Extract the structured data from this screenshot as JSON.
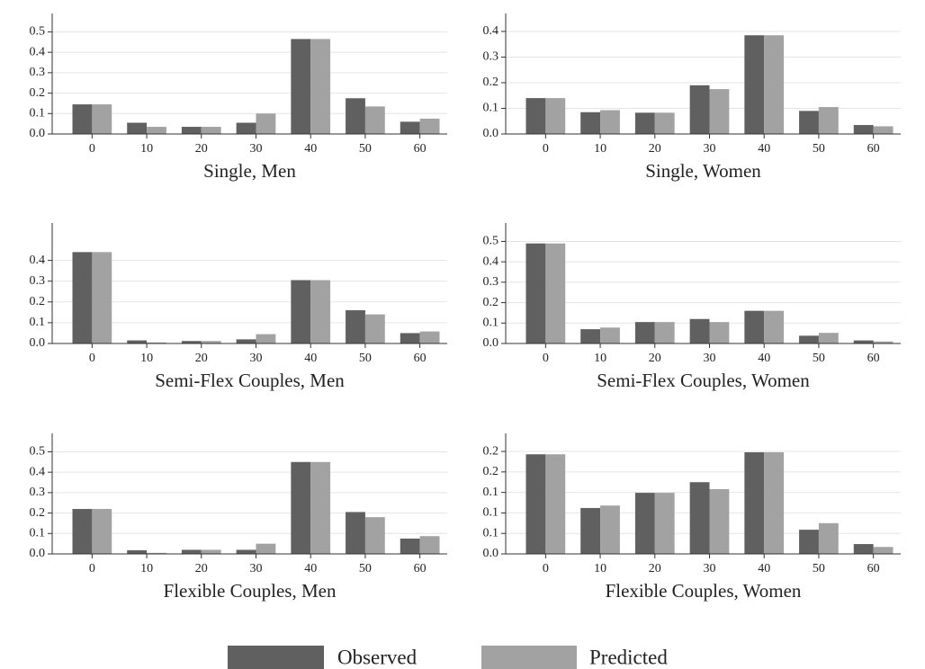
{
  "chart_data": [
    {
      "type": "bar",
      "xlabel": "Single, Men",
      "categories": [
        "0",
        "10",
        "20",
        "30",
        "40",
        "50",
        "60"
      ],
      "series": [
        {
          "name": "Observed",
          "color": "#606060",
          "values": [
            0.145,
            0.055,
            0.035,
            0.055,
            0.465,
            0.175,
            0.06
          ]
        },
        {
          "name": "Predicted",
          "color": "#a2a2a2",
          "values": [
            0.145,
            0.035,
            0.035,
            0.1,
            0.465,
            0.135,
            0.075
          ]
        }
      ],
      "ylim": [
        0,
        0.59
      ],
      "yticks": [
        {
          "value": 0,
          "label": "0.0"
        },
        0.1,
        0.2,
        0.3,
        0.4,
        0.5
      ],
      "grid": true
    },
    {
      "type": "bar",
      "xlabel": "Single, Women",
      "categories": [
        "0",
        "10",
        "20",
        "30",
        "40",
        "50",
        "60"
      ],
      "series": [
        {
          "name": "Observed",
          "color": "#606060",
          "values": [
            0.14,
            0.085,
            0.083,
            0.19,
            0.385,
            0.09,
            0.035
          ]
        },
        {
          "name": "Predicted",
          "color": "#a2a2a2",
          "values": [
            0.14,
            0.093,
            0.083,
            0.175,
            0.385,
            0.105,
            0.03
          ]
        }
      ],
      "ylim": [
        0,
        0.47
      ],
      "yticks": [
        {
          "value": 0,
          "label": "0.0"
        },
        0.1,
        0.2,
        0.3,
        0.4
      ],
      "grid": true
    },
    {
      "type": "bar",
      "xlabel": "Semi-Flex Couples, Men",
      "categories": [
        "0",
        "10",
        "20",
        "30",
        "40",
        "50",
        "60"
      ],
      "series": [
        {
          "name": "Observed",
          "color": "#606060",
          "values": [
            0.44,
            0.015,
            0.012,
            0.02,
            0.305,
            0.16,
            0.05
          ]
        },
        {
          "name": "Predicted",
          "color": "#a2a2a2",
          "values": [
            0.44,
            0.005,
            0.012,
            0.045,
            0.305,
            0.14,
            0.058
          ]
        }
      ],
      "ylim": [
        0,
        0.58
      ],
      "yticks": [
        {
          "value": 0,
          "label": "0.0"
        },
        0.1,
        0.2,
        0.3,
        0.4
      ],
      "grid": true
    },
    {
      "type": "bar",
      "xlabel": "Semi-Flex Couples, Women",
      "categories": [
        "0",
        "10",
        "20",
        "30",
        "40",
        "50",
        "60"
      ],
      "series": [
        {
          "name": "Observed",
          "color": "#606060",
          "values": [
            0.49,
            0.07,
            0.105,
            0.12,
            0.16,
            0.038,
            0.015
          ]
        },
        {
          "name": "Predicted",
          "color": "#a2a2a2",
          "values": [
            0.49,
            0.078,
            0.105,
            0.105,
            0.16,
            0.052,
            0.01
          ]
        }
      ],
      "ylim": [
        0,
        0.59
      ],
      "yticks": [
        {
          "value": 0,
          "label": "0.0"
        },
        0.1,
        0.2,
        0.3,
        0.4,
        0.5
      ],
      "grid": true
    },
    {
      "type": "bar",
      "xlabel": "Flexible Couples, Men",
      "categories": [
        "0",
        "10",
        "20",
        "30",
        "40",
        "50",
        "60"
      ],
      "series": [
        {
          "name": "Observed",
          "color": "#606060",
          "values": [
            0.22,
            0.018,
            0.02,
            0.02,
            0.45,
            0.205,
            0.075
          ]
        },
        {
          "name": "Predicted",
          "color": "#a2a2a2",
          "values": [
            0.22,
            0.005,
            0.02,
            0.05,
            0.45,
            0.18,
            0.087
          ]
        }
      ],
      "ylim": [
        0,
        0.59
      ],
      "yticks": [
        {
          "value": 0,
          "label": "0.0"
        },
        0.1,
        0.2,
        0.3,
        0.4,
        0.5
      ],
      "grid": true
    },
    {
      "type": "bar",
      "xlabel": "Flexible Couples, Women",
      "categories": [
        "0",
        "10",
        "20",
        "30",
        "40",
        "50",
        "60"
      ],
      "series": [
        {
          "name": "Observed",
          "color": "#606060",
          "values": [
            0.243,
            0.112,
            0.149,
            0.175,
            0.248,
            0.059,
            0.024
          ]
        },
        {
          "name": "Predicted",
          "color": "#a2a2a2",
          "values": [
            0.243,
            0.118,
            0.149,
            0.158,
            0.248,
            0.075,
            0.017
          ]
        }
      ],
      "ylim": [
        0,
        0.294
      ],
      "yticks": [
        {
          "value": 0,
          "label": "0.0"
        },
        {
          "value": 0.05,
          "label": "0.1"
        },
        {
          "value": 0.1,
          "label": "0.1"
        },
        {
          "value": 0.15,
          "label": "0.1"
        },
        {
          "value": 0.2,
          "label": "0.2"
        },
        {
          "value": 0.25,
          "label": "0.2"
        }
      ],
      "grid": true
    }
  ]
}
